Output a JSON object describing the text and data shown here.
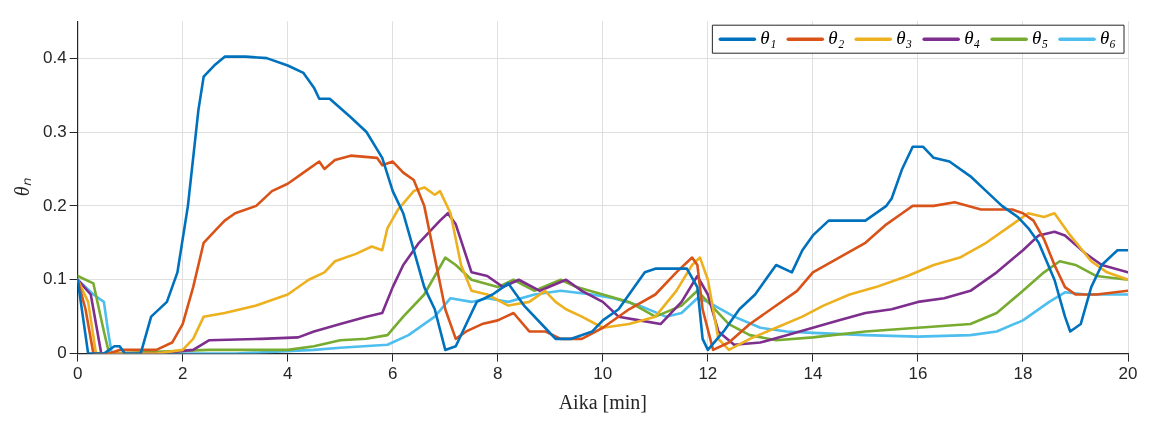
{
  "chart_data": {
    "type": "line",
    "xlabel": "Aika [min]",
    "ylabel": "θₙ",
    "xlim": [
      0,
      20
    ],
    "xticks": [
      0,
      2,
      4,
      6,
      8,
      10,
      12,
      14,
      16,
      18,
      20
    ],
    "ylim": [
      0,
      0.45
    ],
    "yticks": [
      0,
      0.1,
      0.2,
      0.3,
      0.4
    ],
    "grid": true,
    "legend": "top right",
    "series": [
      {
        "name": "θ₁",
        "color": "#0072bd",
        "x": [
          0,
          0.1,
          0.2,
          0.5,
          0.7,
          0.8,
          0.9,
          1.2,
          1.4,
          1.7,
          1.9,
          2.1,
          2.3,
          2.4,
          2.6,
          2.8,
          3.2,
          3.6,
          4.0,
          4.3,
          4.5,
          4.6,
          4.8,
          5.2,
          5.5,
          5.8,
          6.0,
          6.2,
          6.4,
          6.6,
          6.8,
          7.0,
          7.2,
          7.4,
          7.6,
          7.9,
          8.0,
          8.2,
          8.5,
          8.9,
          9.1,
          9.4,
          9.8,
          10.0,
          10.3,
          10.6,
          10.8,
          11.0,
          11.6,
          11.8,
          11.9,
          12.0,
          12.3,
          12.6,
          12.9,
          13.3,
          13.6,
          13.8,
          14.0,
          14.3,
          14.6,
          15.0,
          15.4,
          15.5,
          15.7,
          15.9,
          16.1,
          16.3,
          16.6,
          17.0,
          17.3,
          17.6,
          17.9,
          18.1,
          18.3,
          18.6,
          18.8,
          18.9,
          19.1,
          19.3,
          19.5,
          19.8,
          20.0
        ],
        "values": [
          0.1,
          0.05,
          0.0,
          0.0,
          0.01,
          0.01,
          0.0,
          0.0,
          0.05,
          0.07,
          0.11,
          0.2,
          0.33,
          0.375,
          0.39,
          0.402,
          0.402,
          0.4,
          0.39,
          0.38,
          0.36,
          0.345,
          0.345,
          0.32,
          0.3,
          0.265,
          0.22,
          0.19,
          0.14,
          0.09,
          0.06,
          0.005,
          0.01,
          0.04,
          0.07,
          0.08,
          0.085,
          0.095,
          0.065,
          0.035,
          0.02,
          0.02,
          0.03,
          0.045,
          0.06,
          0.09,
          0.11,
          0.115,
          0.115,
          0.09,
          0.02,
          0.005,
          0.03,
          0.06,
          0.08,
          0.12,
          0.11,
          0.14,
          0.16,
          0.18,
          0.18,
          0.18,
          0.2,
          0.21,
          0.25,
          0.28,
          0.28,
          0.265,
          0.26,
          0.24,
          0.22,
          0.2,
          0.185,
          0.17,
          0.15,
          0.1,
          0.05,
          0.03,
          0.04,
          0.09,
          0.12,
          0.14,
          0.14
        ]
      },
      {
        "name": "θ₂",
        "color": "#d95319",
        "x": [
          0,
          0.15,
          0.3,
          0.6,
          0.8,
          1.5,
          1.8,
          2.0,
          2.2,
          2.4,
          2.6,
          2.8,
          3.0,
          3.4,
          3.7,
          4.0,
          4.3,
          4.6,
          4.7,
          4.9,
          5.2,
          5.7,
          5.8,
          6.0,
          6.2,
          6.4,
          6.6,
          6.8,
          7.0,
          7.2,
          7.4,
          7.7,
          8.0,
          8.3,
          8.6,
          8.9,
          9.2,
          9.6,
          10.0,
          10.5,
          11.0,
          11.4,
          11.7,
          11.8,
          11.9,
          12.1,
          12.4,
          12.8,
          13.2,
          13.7,
          14.0,
          14.5,
          15.0,
          15.4,
          15.7,
          15.9,
          16.3,
          16.7,
          17.2,
          17.8,
          18.0,
          18.2,
          18.4,
          18.6,
          18.8,
          19.0,
          19.4,
          20.0
        ],
        "values": [
          0.1,
          0.06,
          0.0,
          0.0,
          0.005,
          0.005,
          0.015,
          0.04,
          0.09,
          0.15,
          0.165,
          0.18,
          0.19,
          0.2,
          0.22,
          0.23,
          0.245,
          0.26,
          0.25,
          0.262,
          0.268,
          0.265,
          0.255,
          0.26,
          0.245,
          0.235,
          0.2,
          0.13,
          0.06,
          0.02,
          0.03,
          0.04,
          0.045,
          0.055,
          0.03,
          0.03,
          0.02,
          0.02,
          0.035,
          0.06,
          0.08,
          0.11,
          0.13,
          0.12,
          0.06,
          0.005,
          0.015,
          0.04,
          0.06,
          0.085,
          0.11,
          0.13,
          0.15,
          0.175,
          0.19,
          0.2,
          0.2,
          0.205,
          0.195,
          0.195,
          0.19,
          0.18,
          0.155,
          0.12,
          0.09,
          0.08,
          0.08,
          0.085
        ]
      },
      {
        "name": "θ₃",
        "color": "#edb120",
        "x": [
          0,
          0.2,
          0.35,
          0.6,
          1.5,
          2.0,
          2.2,
          2.4,
          2.8,
          3.4,
          4.0,
          4.4,
          4.7,
          4.9,
          5.3,
          5.6,
          5.8,
          5.9,
          6.1,
          6.4,
          6.6,
          6.8,
          6.9,
          7.1,
          7.3,
          7.5,
          7.8,
          8.2,
          8.6,
          8.9,
          9.1,
          9.3,
          9.6,
          10.0,
          10.5,
          11.0,
          11.4,
          11.7,
          11.85,
          12.0,
          12.2,
          12.4,
          12.8,
          13.3,
          13.8,
          14.2,
          14.7,
          15.2,
          15.8,
          16.3,
          16.8,
          17.3,
          17.8,
          18.1,
          18.4,
          18.6,
          18.9,
          19.3,
          19.6,
          20.0
        ],
        "values": [
          0.1,
          0.07,
          0.0,
          0.0,
          0.0,
          0.005,
          0.02,
          0.05,
          0.055,
          0.065,
          0.08,
          0.1,
          0.11,
          0.125,
          0.135,
          0.145,
          0.14,
          0.17,
          0.195,
          0.22,
          0.225,
          0.215,
          0.22,
          0.19,
          0.12,
          0.085,
          0.08,
          0.065,
          0.07,
          0.085,
          0.07,
          0.06,
          0.05,
          0.035,
          0.04,
          0.05,
          0.085,
          0.12,
          0.13,
          0.1,
          0.02,
          0.005,
          0.02,
          0.035,
          0.05,
          0.065,
          0.08,
          0.09,
          0.105,
          0.12,
          0.13,
          0.15,
          0.175,
          0.19,
          0.185,
          0.19,
          0.16,
          0.125,
          0.11,
          0.1
        ]
      },
      {
        "name": "θ₄",
        "color": "#7e2f8e",
        "x": [
          0,
          0.25,
          0.45,
          0.6,
          1.5,
          2.2,
          2.5,
          3.5,
          4.2,
          4.5,
          5.0,
          5.5,
          5.8,
          6.0,
          6.2,
          6.5,
          6.9,
          7.05,
          7.2,
          7.5,
          7.8,
          8.1,
          8.4,
          8.8,
          9.3,
          9.6,
          10.0,
          10.3,
          10.7,
          11.1,
          11.5,
          11.8,
          12.0,
          12.2,
          12.5,
          13.0,
          13.5,
          14.0,
          14.5,
          15.0,
          15.5,
          16.0,
          16.5,
          17.0,
          17.5,
          18.0,
          18.3,
          18.6,
          18.8,
          19.2,
          19.5,
          20.0
        ],
        "values": [
          0.1,
          0.08,
          0.0,
          0.0,
          0.0,
          0.005,
          0.018,
          0.02,
          0.022,
          0.03,
          0.04,
          0.05,
          0.055,
          0.09,
          0.12,
          0.15,
          0.18,
          0.19,
          0.175,
          0.11,
          0.105,
          0.09,
          0.1,
          0.085,
          0.1,
          0.085,
          0.07,
          0.05,
          0.045,
          0.04,
          0.07,
          0.105,
          0.08,
          0.03,
          0.012,
          0.015,
          0.025,
          0.035,
          0.045,
          0.055,
          0.06,
          0.07,
          0.075,
          0.085,
          0.11,
          0.14,
          0.16,
          0.165,
          0.16,
          0.135,
          0.12,
          0.11
        ]
      },
      {
        "name": "θ₅",
        "color": "#77ac30",
        "x": [
          0,
          0.3,
          0.5,
          0.6,
          2.5,
          4.0,
          4.5,
          5.0,
          5.5,
          5.9,
          6.2,
          6.6,
          7.0,
          7.2,
          7.5,
          8.0,
          8.3,
          8.7,
          9.2,
          9.5,
          10.0,
          10.5,
          11.0,
          11.5,
          11.8,
          12.0,
          12.4,
          12.8,
          13.3,
          14.0,
          15.0,
          16.0,
          17.0,
          17.5,
          18.0,
          18.4,
          18.7,
          19.0,
          19.4,
          20.0
        ],
        "values": [
          0.105,
          0.095,
          0.03,
          0.0,
          0.005,
          0.005,
          0.01,
          0.018,
          0.02,
          0.025,
          0.05,
          0.08,
          0.13,
          0.12,
          0.1,
          0.09,
          0.1,
          0.085,
          0.1,
          0.09,
          0.08,
          0.07,
          0.05,
          0.065,
          0.085,
          0.07,
          0.04,
          0.025,
          0.018,
          0.022,
          0.03,
          0.035,
          0.04,
          0.055,
          0.085,
          0.11,
          0.125,
          0.12,
          0.105,
          0.1
        ]
      },
      {
        "name": "θ₆",
        "color": "#4dbeee",
        "x": [
          0,
          0.3,
          0.5,
          0.58,
          0.65,
          3.0,
          4.5,
          5.0,
          5.9,
          6.3,
          6.8,
          7.1,
          7.5,
          7.8,
          8.2,
          8.7,
          9.2,
          9.8,
          10.2,
          10.7,
          11.2,
          11.5,
          11.8,
          12.0,
          12.5,
          13.0,
          13.5,
          14.0,
          15.0,
          16.0,
          17.0,
          17.5,
          18.0,
          18.5,
          18.8,
          19.2,
          20.0
        ],
        "values": [
          0.1,
          0.08,
          0.07,
          0.03,
          0.0,
          0.0,
          0.005,
          0.008,
          0.012,
          0.025,
          0.05,
          0.075,
          0.07,
          0.075,
          0.07,
          0.08,
          0.085,
          0.08,
          0.075,
          0.065,
          0.05,
          0.055,
          0.075,
          0.07,
          0.05,
          0.035,
          0.03,
          0.028,
          0.025,
          0.023,
          0.025,
          0.03,
          0.045,
          0.07,
          0.083,
          0.08,
          0.08
        ]
      }
    ]
  }
}
